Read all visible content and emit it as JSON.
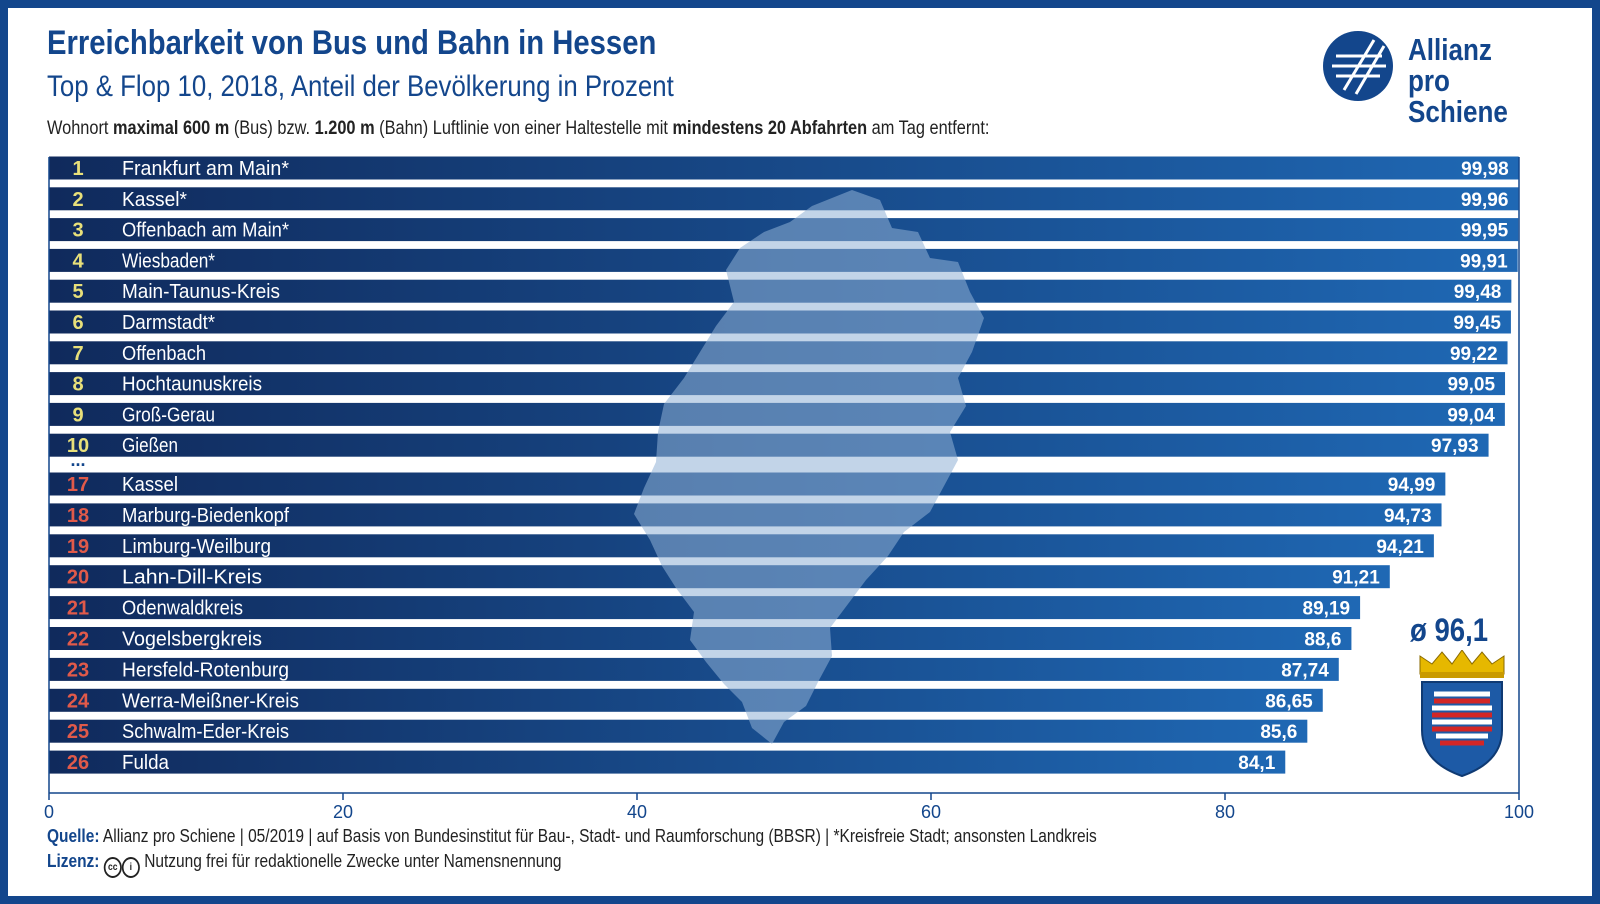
{
  "title": "Erreichbarkeit von Bus und Bahn in Hessen",
  "subtitle": "Top & Flop 10, 2018, Anteil der Bevölkerung in Prozent",
  "description": {
    "p1": "Wohnort ",
    "b1": "maximal 600 m",
    "p2": " (Bus) bzw. ",
    "b2": "1.200 m",
    "p3": " (Bahn) Luftlinie von einer Haltestelle mit ",
    "b3": "mindestens 20 Abfahrten",
    "p4": " am Tag entfernt:"
  },
  "logo": {
    "line1": "Allianz",
    "line2": "pro Schiene"
  },
  "average_label": "ø 96,1",
  "footer": {
    "source_label": "Quelle:",
    "source_text": "Allianz pro Schiene | 05/2019 | auf Basis von Bundesinstitut für Bau-, Stadt- und Raumforschung (BBSR) | *Kreisfreie Stadt; ansonsten Landkreis",
    "license_label": "Lizenz:",
    "license_text": "Nutzung frei für redaktionelle Zwecke unter Namensnennung"
  },
  "colors": {
    "brand_blue": "#13468c",
    "bar_dark": "#102a5c",
    "bar_light": "#1f68b4",
    "rank_top": "#e8e07a",
    "rank_flop": "#e05a4a",
    "hessen_map": "#8fb0d6"
  },
  "icons": {
    "logo": "allianz-pro-schiene-logo",
    "crest": "hessen-coat-of-arms",
    "cc": "creative-commons-icon",
    "by": "attribution-icon"
  },
  "chart_data": {
    "type": "bar",
    "orientation": "horizontal",
    "xlim": [
      0,
      100
    ],
    "xticks": [
      0,
      20,
      40,
      60,
      80,
      100
    ],
    "grid": false,
    "separator_label": "...",
    "top": [
      {
        "rank": "1",
        "name": "Frankfurt am Main*",
        "value": 99.98,
        "label": "99,98"
      },
      {
        "rank": "2",
        "name": "Kassel*",
        "value": 99.96,
        "label": "99,96"
      },
      {
        "rank": "3",
        "name": "Offenbach am Main*",
        "value": 99.95,
        "label": "99,95"
      },
      {
        "rank": "4",
        "name": "Wiesbaden*",
        "value": 99.91,
        "label": "99,91"
      },
      {
        "rank": "5",
        "name": "Main-Taunus-Kreis",
        "value": 99.48,
        "label": "99,48"
      },
      {
        "rank": "6",
        "name": "Darmstadt*",
        "value": 99.45,
        "label": "99,45"
      },
      {
        "rank": "7",
        "name": "Offenbach",
        "value": 99.22,
        "label": "99,22"
      },
      {
        "rank": "8",
        "name": "Hochtaunuskreis",
        "value": 99.05,
        "label": "99,05"
      },
      {
        "rank": "9",
        "name": "Groß-Gerau",
        "value": 99.04,
        "label": "99,04"
      },
      {
        "rank": "10",
        "name": "Gießen",
        "value": 97.93,
        "label": "97,93"
      }
    ],
    "flop": [
      {
        "rank": "17",
        "name": "Kassel",
        "value": 94.99,
        "label": "94,99"
      },
      {
        "rank": "18",
        "name": "Marburg-Biedenkopf",
        "value": 94.73,
        "label": "94,73"
      },
      {
        "rank": "19",
        "name": "Limburg-Weilburg",
        "value": 94.21,
        "label": "94,21"
      },
      {
        "rank": "20",
        "name": "Lahn-Dill-Kreis",
        "value": 91.21,
        "label": "91,21"
      },
      {
        "rank": "21",
        "name": "Odenwaldkreis",
        "value": 89.19,
        "label": "89,19"
      },
      {
        "rank": "22",
        "name": "Vogelsbergkreis",
        "value": 88.6,
        "label": "88,6"
      },
      {
        "rank": "23",
        "name": "Hersfeld-Rotenburg",
        "value": 87.74,
        "label": "87,74"
      },
      {
        "rank": "24",
        "name": "Werra-Meißner-Kreis",
        "value": 86.65,
        "label": "86,65"
      },
      {
        "rank": "25",
        "name": "Schwalm-Eder-Kreis",
        "value": 85.6,
        "label": "85,6"
      },
      {
        "rank": "26",
        "name": "Fulda",
        "value": 84.1,
        "label": "84,1"
      }
    ]
  }
}
